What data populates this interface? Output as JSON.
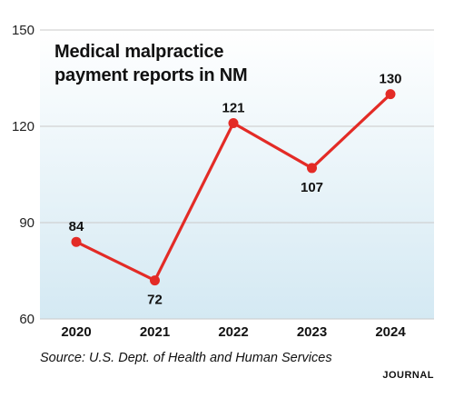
{
  "chart_data": {
    "type": "line",
    "title": "Medical malpractice payment reports in NM",
    "categories": [
      "2020",
      "2021",
      "2022",
      "2023",
      "2024"
    ],
    "series": [
      {
        "values": [
          84,
          72,
          121,
          107,
          130
        ]
      }
    ],
    "data_labels": [
      "84",
      "72",
      "121",
      "107",
      "130"
    ],
    "y_ticks": [
      "60",
      "90",
      "120",
      "150"
    ],
    "ylim": [
      60,
      150
    ],
    "grid": true,
    "line_color": "#e32b26",
    "source": "Source: U.S. Dept. of Health and Human Services",
    "brand": "JOURNAL"
  }
}
